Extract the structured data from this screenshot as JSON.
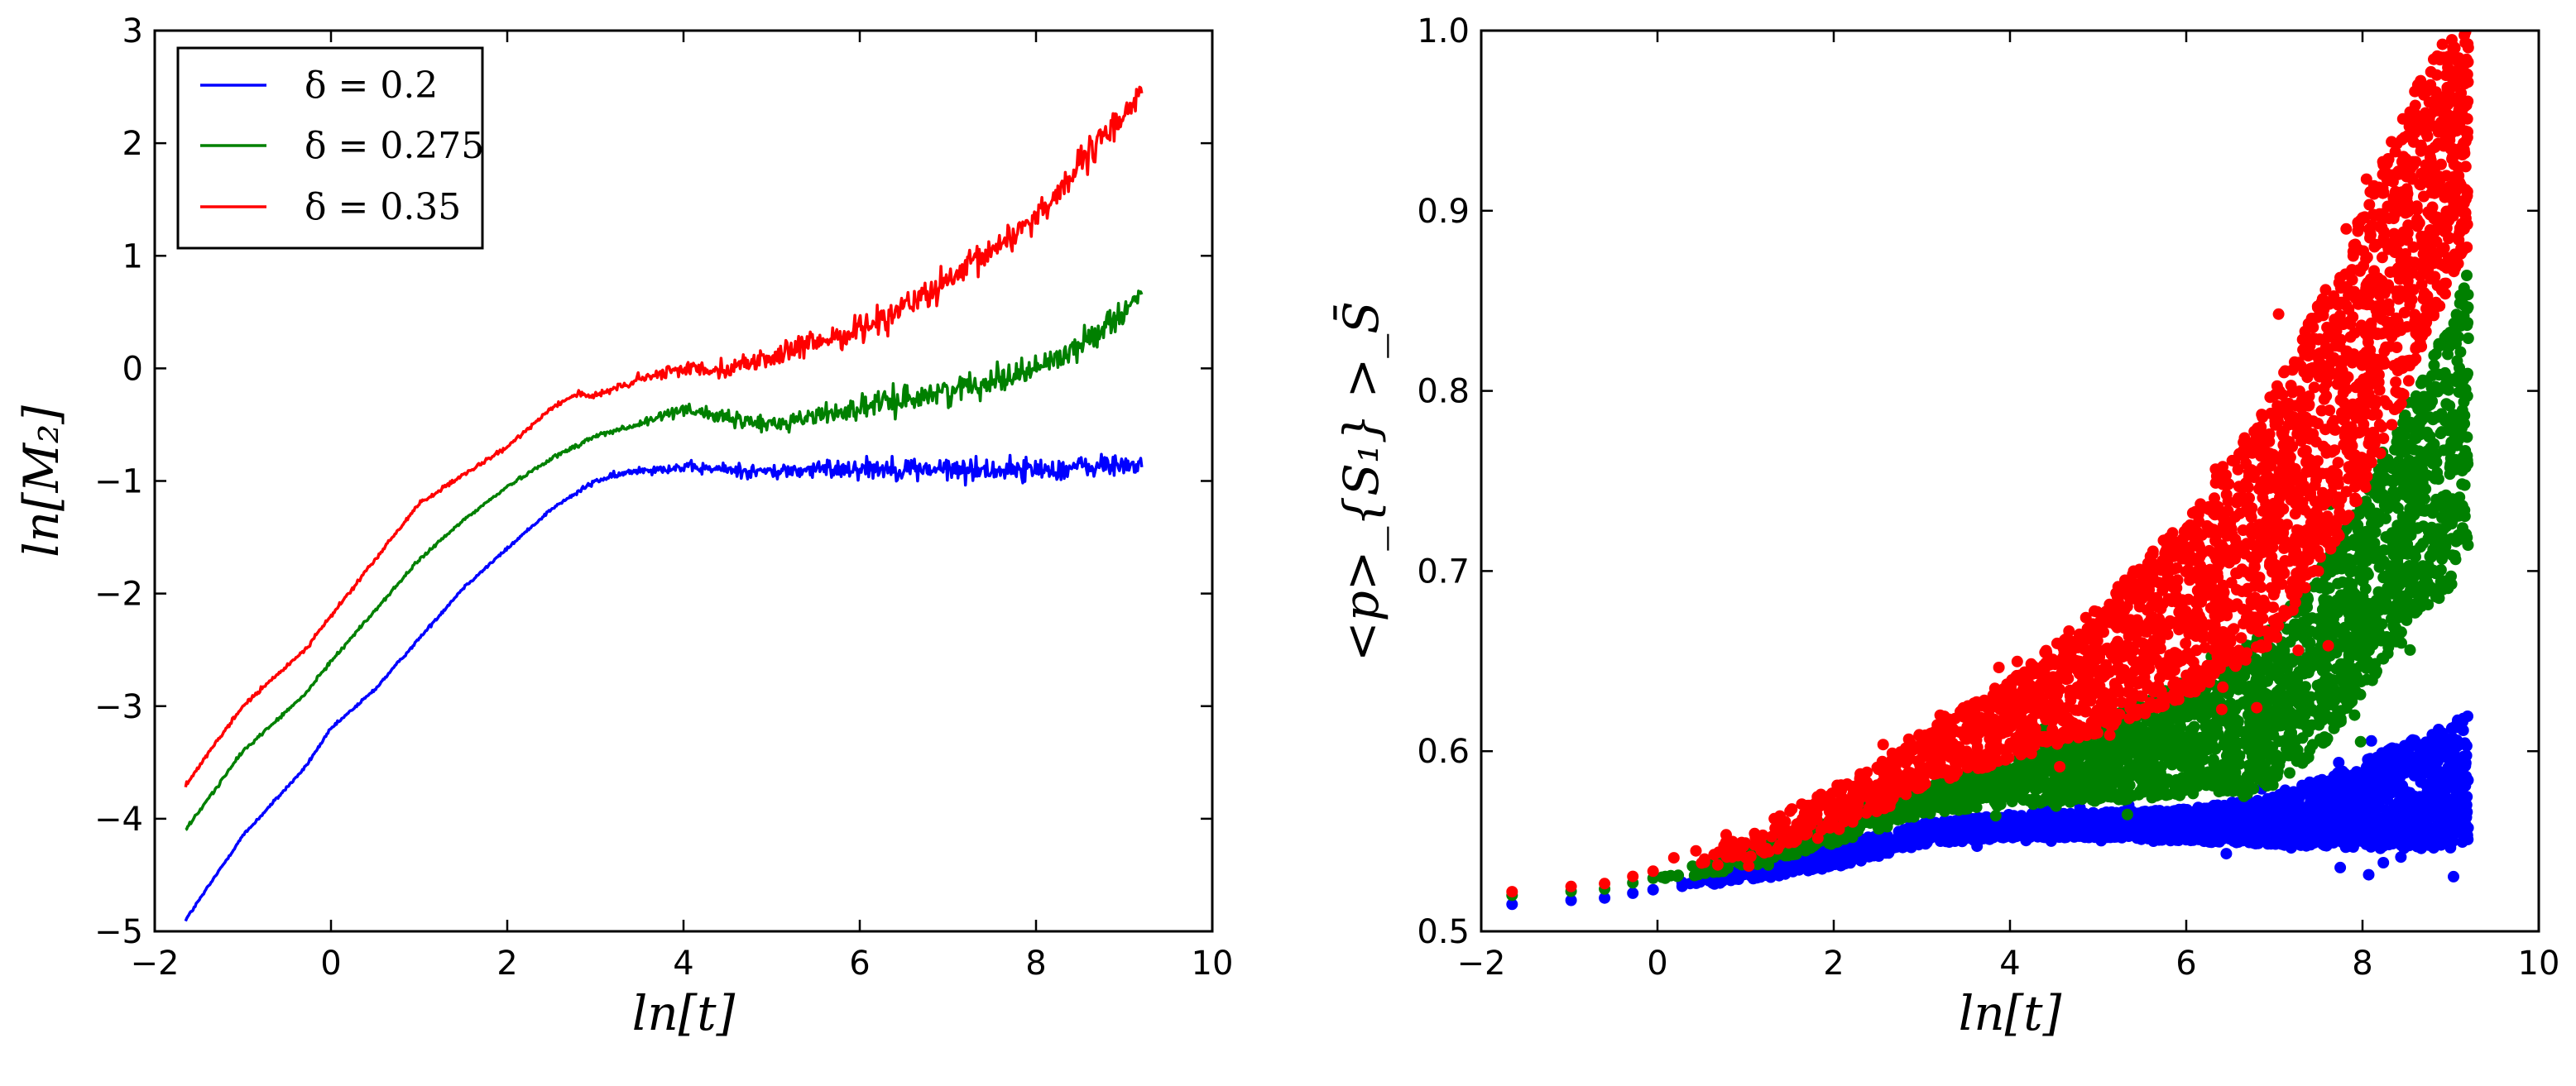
{
  "chart_data": [
    {
      "type": "line",
      "xlabel": "ln[t]",
      "ylabel": "ln[M₂]",
      "xlim": [
        -2,
        10
      ],
      "ylim": [
        -5,
        3
      ],
      "xticks": [
        "−2",
        "0",
        "2",
        "4",
        "6",
        "8",
        "10"
      ],
      "yticks": [
        "−5",
        "−4",
        "−3",
        "−2",
        "−1",
        "0",
        "1",
        "2",
        "3"
      ],
      "legend": {
        "placement": "top-left"
      },
      "series": [
        {
          "name": "δ = 0.2",
          "color": "#0000ff",
          "noise": 0.09,
          "x": [
            -1.65,
            -1.0,
            -0.3,
            0.0,
            0.5,
            1.0,
            1.5,
            2.0,
            2.5,
            3.0,
            3.5,
            4.0,
            4.5,
            5.0,
            5.5,
            6.0,
            7.0,
            8.0,
            9.2
          ],
          "y": [
            -4.9,
            -4.15,
            -3.55,
            -3.2,
            -2.85,
            -2.4,
            -1.95,
            -1.6,
            -1.25,
            -1.0,
            -0.9,
            -0.88,
            -0.9,
            -0.92,
            -0.9,
            -0.88,
            -0.9,
            -0.9,
            -0.85
          ]
        },
        {
          "name": "δ = 0.275",
          "color": "#008000",
          "noise": 0.1,
          "x": [
            -1.65,
            -1.0,
            -0.3,
            0.0,
            0.5,
            1.0,
            1.5,
            2.0,
            2.5,
            3.0,
            3.5,
            4.0,
            4.5,
            5.0,
            5.3,
            6.0,
            7.0,
            8.0,
            8.5,
            9.2
          ],
          "y": [
            -4.1,
            -3.4,
            -2.9,
            -2.6,
            -2.15,
            -1.7,
            -1.35,
            -1.05,
            -0.8,
            -0.6,
            -0.5,
            -0.35,
            -0.45,
            -0.5,
            -0.45,
            -0.35,
            -0.2,
            0.0,
            0.2,
            0.65
          ]
        },
        {
          "name": "δ = 0.35",
          "color": "#ff0000",
          "noise": 0.12,
          "x": [
            -1.65,
            -1.0,
            -0.3,
            0.0,
            0.5,
            1.0,
            1.5,
            2.0,
            2.5,
            2.8,
            3.0,
            3.5,
            4.0,
            4.5,
            5.0,
            6.0,
            7.0,
            8.0,
            8.5,
            9.2
          ],
          "y": [
            -3.7,
            -3.0,
            -2.5,
            -2.2,
            -1.7,
            -1.2,
            -0.95,
            -0.7,
            -0.35,
            -0.22,
            -0.25,
            -0.1,
            0.0,
            0.0,
            0.1,
            0.35,
            0.75,
            1.35,
            1.8,
            2.45
          ]
        }
      ]
    },
    {
      "type": "scatter",
      "xlabel": "ln[t]",
      "ylabel": "<p>_{S₁} >_S̄",
      "xlim": [
        -2,
        10
      ],
      "ylim": [
        0.5,
        1.0
      ],
      "xticks": [
        "−2",
        "0",
        "2",
        "4",
        "6",
        "8",
        "10"
      ],
      "yticks": [
        "0.5",
        "0.6",
        "0.7",
        "0.8",
        "0.9",
        "1.0"
      ],
      "series": [
        {
          "color": "#0000ff",
          "envelope": {
            "x": [
              -1.65,
              -0.6,
              0.0,
              1.0,
              2.0,
              3.0,
              4.0,
              5.0,
              6.0,
              7.0,
              7.5,
              8.0,
              8.5,
              9.0,
              9.2
            ],
            "low": [
              0.515,
              0.517,
              0.522,
              0.528,
              0.535,
              0.548,
              0.552,
              0.552,
              0.55,
              0.548,
              0.547,
              0.546,
              0.546,
              0.546,
              0.548
            ],
            "high": [
              0.515,
              0.52,
              0.525,
              0.535,
              0.548,
              0.56,
              0.565,
              0.566,
              0.568,
              0.575,
              0.585,
              0.595,
              0.605,
              0.615,
              0.625
            ]
          }
        },
        {
          "color": "#008000",
          "envelope": {
            "x": [
              -1.65,
              -0.6,
              0.0,
              1.0,
              2.0,
              3.0,
              4.0,
              5.0,
              6.0,
              7.0,
              7.5,
              8.0,
              8.5,
              9.0,
              9.2
            ],
            "low": [
              0.52,
              0.522,
              0.528,
              0.535,
              0.548,
              0.565,
              0.57,
              0.572,
              0.575,
              0.58,
              0.6,
              0.63,
              0.67,
              0.69,
              0.72
            ],
            "high": [
              0.52,
              0.525,
              0.532,
              0.545,
              0.565,
              0.58,
              0.595,
              0.615,
              0.64,
              0.67,
              0.7,
              0.74,
              0.79,
              0.84,
              0.87
            ]
          }
        },
        {
          "color": "#ff0000",
          "envelope": {
            "x": [
              -1.65,
              -0.6,
              0.0,
              1.0,
              2.0,
              2.5,
              3.0,
              4.0,
              5.0,
              6.0,
              7.0,
              7.5,
              8.0,
              8.5,
              9.0,
              9.2
            ],
            "low": [
              0.522,
              0.525,
              0.53,
              0.54,
              0.555,
              0.565,
              0.58,
              0.595,
              0.61,
              0.63,
              0.66,
              0.7,
              0.74,
              0.8,
              0.86,
              0.88
            ],
            "high": [
              0.522,
              0.528,
              0.538,
              0.555,
              0.58,
              0.595,
              0.61,
              0.64,
              0.68,
              0.73,
              0.8,
              0.85,
              0.9,
              0.96,
              1.0,
              1.0
            ]
          }
        }
      ]
    }
  ]
}
